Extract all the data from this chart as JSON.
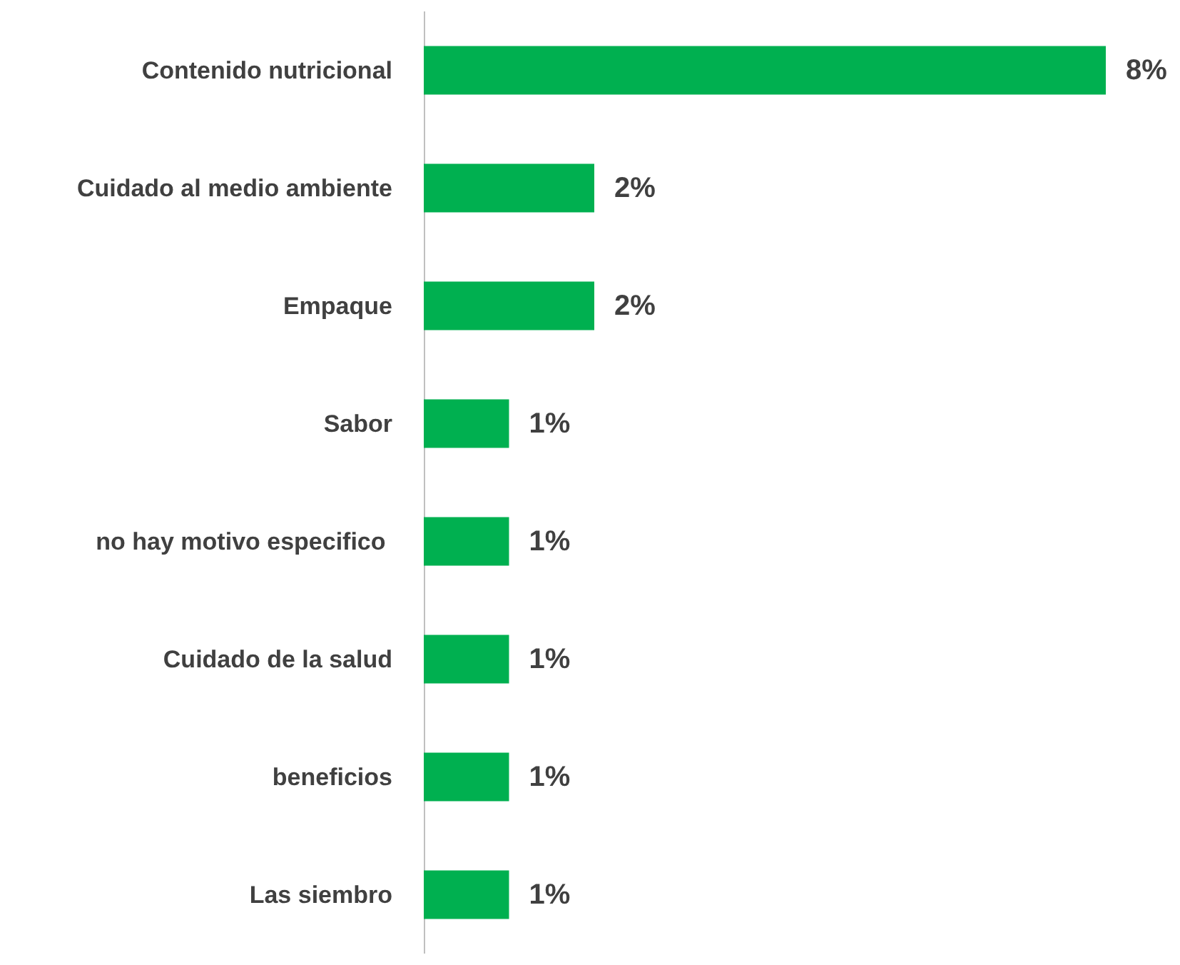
{
  "chart_data": {
    "type": "bar",
    "orientation": "horizontal",
    "categories": [
      "Contenido nutricional",
      "Cuidado al medio ambiente",
      "Empaque",
      "Sabor",
      "no hay motivo especifico ",
      "Cuidado de la salud",
      "beneficios",
      "Las siembro"
    ],
    "values": [
      8,
      2,
      2,
      1,
      1,
      1,
      1,
      1
    ],
    "value_labels": [
      "8%",
      "2%",
      "2%",
      "1%",
      "1%",
      "1%",
      "1%",
      "1%"
    ],
    "color": "#00b050"
  }
}
